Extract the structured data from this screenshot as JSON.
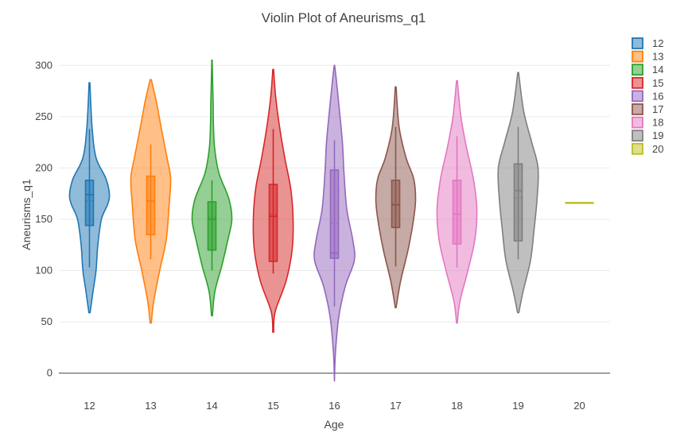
{
  "chart_data": {
    "type": "violin",
    "title": "Violin Plot of Aneurisms_q1",
    "xlabel": "Age",
    "ylabel": "Aneurisms_q1",
    "ylim": [
      -8,
      325
    ],
    "yticks": [
      0,
      50,
      100,
      150,
      200,
      250,
      300
    ],
    "grid": true,
    "legend_position": "top-right",
    "categories": [
      "12",
      "13",
      "14",
      "15",
      "16",
      "17",
      "18",
      "19",
      "20"
    ],
    "series": [
      {
        "name": "12",
        "color": "#1f77b4",
        "min": 59,
        "max": 283,
        "q1": 144,
        "median": 174,
        "q3": 188,
        "mean": 168,
        "whisker_low": 103,
        "whisker_high": 238,
        "density": [
          [
            59,
            0.03
          ],
          [
            80,
            0.18
          ],
          [
            100,
            0.33
          ],
          [
            125,
            0.42
          ],
          [
            150,
            0.6
          ],
          [
            165,
            0.92
          ],
          [
            175,
            1.0
          ],
          [
            190,
            0.82
          ],
          [
            210,
            0.33
          ],
          [
            240,
            0.13
          ],
          [
            283,
            0.02
          ]
        ]
      },
      {
        "name": "13",
        "color": "#ff7f0e",
        "min": 49,
        "max": 286,
        "q1": 135,
        "median": 168,
        "q3": 192,
        "mean": 167,
        "whisker_low": 111,
        "whisker_high": 223,
        "density": [
          [
            49,
            0.03
          ],
          [
            70,
            0.15
          ],
          [
            100,
            0.45
          ],
          [
            130,
            0.78
          ],
          [
            165,
            0.93
          ],
          [
            190,
            1.0
          ],
          [
            210,
            0.82
          ],
          [
            240,
            0.52
          ],
          [
            265,
            0.28
          ],
          [
            286,
            0.03
          ]
        ]
      },
      {
        "name": "14",
        "color": "#2ca02c",
        "min": 56,
        "max": 305,
        "q1": 120,
        "median": 150,
        "q3": 167,
        "mean": 152,
        "whisker_low": 100,
        "whisker_high": 188,
        "density": [
          [
            56,
            0.02
          ],
          [
            80,
            0.15
          ],
          [
            105,
            0.5
          ],
          [
            130,
            0.8
          ],
          [
            150,
            1.0
          ],
          [
            170,
            0.85
          ],
          [
            195,
            0.35
          ],
          [
            220,
            0.13
          ],
          [
            245,
            0.07
          ],
          [
            262,
            0.06
          ],
          [
            285,
            0.03
          ],
          [
            305,
            0.01
          ]
        ]
      },
      {
        "name": "15",
        "color": "#d62728",
        "min": 40,
        "max": 296,
        "q1": 109,
        "median": 153,
        "q3": 184,
        "mean": 155,
        "whisker_low": 97,
        "whisker_high": 238,
        "density": [
          [
            40,
            0.02
          ],
          [
            60,
            0.1
          ],
          [
            90,
            0.65
          ],
          [
            120,
            0.95
          ],
          [
            150,
            1.0
          ],
          [
            180,
            0.88
          ],
          [
            210,
            0.58
          ],
          [
            240,
            0.32
          ],
          [
            270,
            0.12
          ],
          [
            296,
            0.02
          ]
        ]
      },
      {
        "name": "16",
        "color": "#9467bd",
        "min": -8,
        "max": 300,
        "q1": 112,
        "median": 117,
        "q3": 198,
        "mean": 146,
        "whisker_low": 65,
        "whisker_high": 227,
        "density": [
          [
            -8,
            0.0
          ],
          [
            20,
            0.05
          ],
          [
            55,
            0.22
          ],
          [
            85,
            0.55
          ],
          [
            110,
            1.0
          ],
          [
            130,
            0.92
          ],
          [
            160,
            0.62
          ],
          [
            195,
            0.48
          ],
          [
            225,
            0.4
          ],
          [
            260,
            0.23
          ],
          [
            285,
            0.1
          ],
          [
            300,
            0.01
          ]
        ]
      },
      {
        "name": "17",
        "color": "#8c564b",
        "min": 64,
        "max": 279,
        "q1": 142,
        "median": 164,
        "q3": 188,
        "mean": 165,
        "whisker_low": 104,
        "whisker_high": 240,
        "density": [
          [
            64,
            0.02
          ],
          [
            90,
            0.25
          ],
          [
            120,
            0.62
          ],
          [
            150,
            0.9
          ],
          [
            170,
            1.0
          ],
          [
            190,
            0.9
          ],
          [
            210,
            0.52
          ],
          [
            240,
            0.17
          ],
          [
            279,
            0.02
          ]
        ]
      },
      {
        "name": "18",
        "color": "#e377c2",
        "min": 49,
        "max": 285,
        "q1": 126,
        "median": 155,
        "q3": 188,
        "mean": 155,
        "whisker_low": 103,
        "whisker_high": 231,
        "density": [
          [
            49,
            0.02
          ],
          [
            70,
            0.15
          ],
          [
            100,
            0.55
          ],
          [
            130,
            0.9
          ],
          [
            160,
            1.0
          ],
          [
            190,
            0.82
          ],
          [
            220,
            0.48
          ],
          [
            250,
            0.2
          ],
          [
            285,
            0.02
          ]
        ]
      },
      {
        "name": "19",
        "color": "#7f7f7f",
        "min": 59,
        "max": 293,
        "q1": 129,
        "median": 178,
        "q3": 204,
        "mean": 171,
        "whisker_low": 111,
        "whisker_high": 240,
        "density": [
          [
            59,
            0.03
          ],
          [
            80,
            0.25
          ],
          [
            110,
            0.62
          ],
          [
            140,
            0.8
          ],
          [
            170,
            0.95
          ],
          [
            200,
            1.0
          ],
          [
            225,
            0.68
          ],
          [
            255,
            0.28
          ],
          [
            293,
            0.02
          ]
        ]
      },
      {
        "name": "20",
        "color": "#bcbd22",
        "value": 166,
        "min": 166,
        "max": 166
      }
    ]
  }
}
